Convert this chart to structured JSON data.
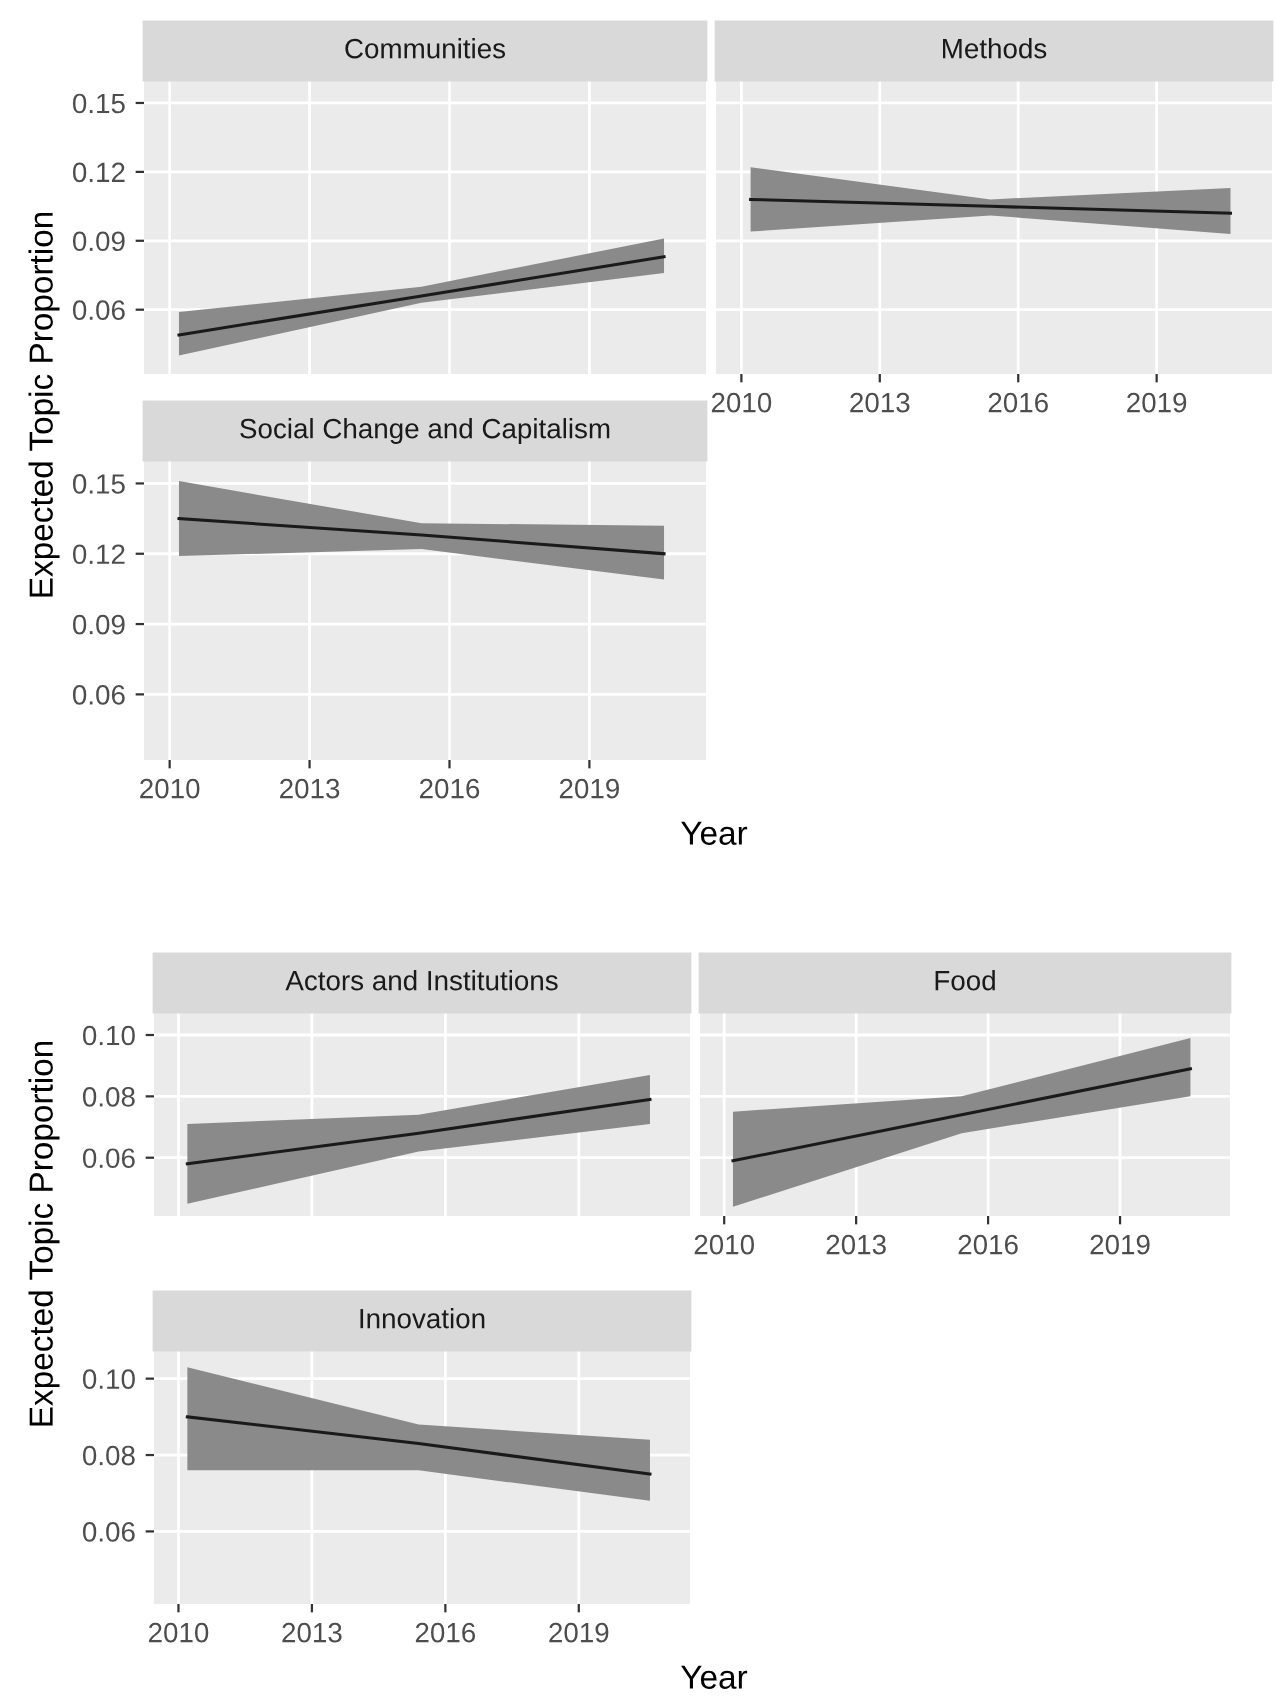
{
  "chart_data": [
    {
      "type": "line",
      "title": "Communities",
      "x": [
        2010.2,
        2015.4,
        2020.6
      ],
      "series": [
        {
          "color": "#1a1a1a",
          "values": [
            0.049,
            0.066,
            0.083
          ],
          "lower": [
            0.04,
            0.063,
            0.076
          ],
          "upper": [
            0.059,
            0.07,
            0.091
          ]
        }
      ],
      "xlim": [
        2009.45,
        2021.5
      ],
      "ylim": [
        0.032,
        0.16
      ],
      "xticks": [
        2010,
        2013,
        2016,
        2019
      ],
      "yticks": [
        0.06,
        0.09,
        0.12,
        0.15
      ],
      "grid": true,
      "tick_labels": "y"
    },
    {
      "type": "line",
      "title": "Methods",
      "x": [
        2010.2,
        2015.4,
        2020.6
      ],
      "series": [
        {
          "color": "#1a1a1a",
          "values": [
            0.108,
            0.105,
            0.102
          ],
          "lower": [
            0.094,
            0.101,
            0.093
          ],
          "upper": [
            0.122,
            0.108,
            0.113
          ]
        }
      ],
      "xlim": [
        2009.45,
        2021.5
      ],
      "ylim": [
        0.032,
        0.16
      ],
      "xticks": [
        2010,
        2013,
        2016,
        2019
      ],
      "yticks": [
        0.06,
        0.09,
        0.12,
        0.15
      ],
      "grid": true,
      "tick_labels": "x"
    },
    {
      "type": "line",
      "title": "Social Change and Capitalism",
      "xlabel": "Year",
      "ylabel": "Expected Topic Proportion",
      "x": [
        2010.2,
        2015.4,
        2020.6
      ],
      "series": [
        {
          "color": "#1a1a1a",
          "values": [
            0.135,
            0.128,
            0.12
          ],
          "lower": [
            0.119,
            0.122,
            0.109
          ],
          "upper": [
            0.151,
            0.133,
            0.132
          ]
        }
      ],
      "xlim": [
        2009.45,
        2021.5
      ],
      "ylim": [
        0.032,
        0.16
      ],
      "xticks": [
        2010,
        2013,
        2016,
        2019
      ],
      "yticks": [
        0.06,
        0.09,
        0.12,
        0.15
      ],
      "grid": true
    },
    {
      "type": "line",
      "title": "Actors and Institutions",
      "x": [
        2010.2,
        2015.4,
        2020.6
      ],
      "series": [
        {
          "color": "#1a1a1a",
          "values": [
            0.058,
            0.068,
            0.079
          ],
          "lower": [
            0.045,
            0.062,
            0.071
          ],
          "upper": [
            0.071,
            0.074,
            0.087
          ]
        }
      ],
      "xlim": [
        2009.45,
        2021.5
      ],
      "ylim": [
        0.041,
        0.1075
      ],
      "xticks": [
        2010,
        2013,
        2016,
        2019
      ],
      "yticks": [
        0.06,
        0.08,
        {
          "value": 0.1,
          "label": "0.10"
        }
      ],
      "grid": true,
      "tick_labels": "y"
    },
    {
      "type": "line",
      "title": "Food",
      "x": [
        2010.2,
        2015.4,
        2020.6
      ],
      "series": [
        {
          "color": "#1a1a1a",
          "values": [
            0.059,
            0.074,
            0.089
          ],
          "lower": [
            0.044,
            0.068,
            0.08
          ],
          "upper": [
            0.075,
            0.08,
            0.099
          ]
        }
      ],
      "xlim": [
        2009.45,
        2021.5
      ],
      "ylim": [
        0.041,
        0.1075
      ],
      "xticks": [
        2010,
        2013,
        2016,
        2019
      ],
      "yticks": [
        0.06,
        0.08,
        0.1
      ],
      "grid": true,
      "tick_labels": "x"
    },
    {
      "type": "line",
      "title": "Innovation",
      "xlabel": "Year",
      "ylabel": "Expected Topic Proportion",
      "x": [
        2010.2,
        2015.4,
        2020.6
      ],
      "series": [
        {
          "color": "#1a1a1a",
          "values": [
            0.09,
            0.083,
            0.075
          ],
          "lower": [
            0.076,
            0.076,
            0.068
          ],
          "upper": [
            0.103,
            0.088,
            0.084
          ]
        }
      ],
      "xlim": [
        2009.45,
        2021.5
      ],
      "ylim": [
        0.041,
        0.1075
      ],
      "xticks": [
        2010,
        2013,
        2016,
        2019
      ],
      "yticks": [
        0.06,
        0.08,
        {
          "value": 0.1,
          "label": "0.10"
        }
      ],
      "grid": true
    }
  ]
}
